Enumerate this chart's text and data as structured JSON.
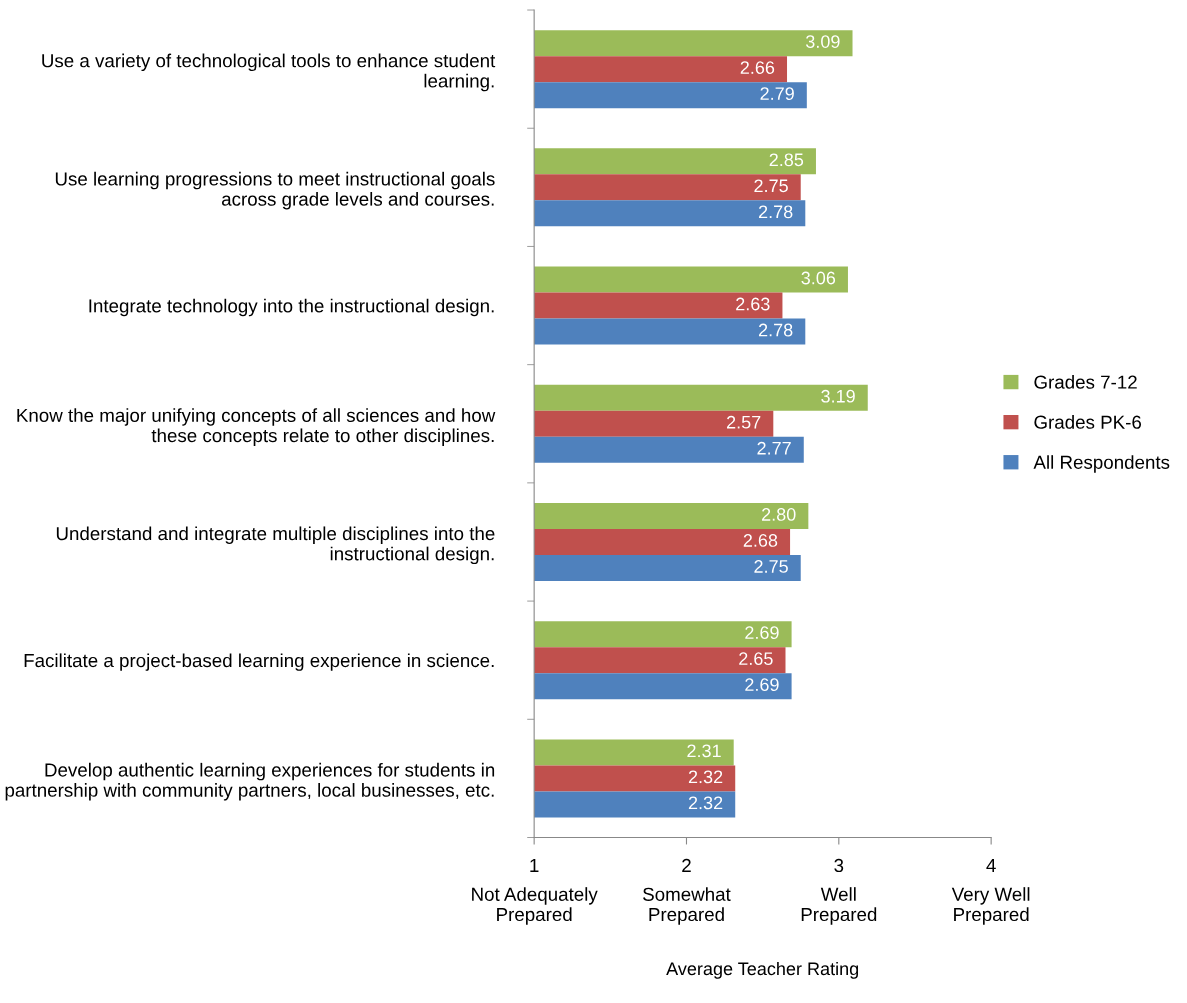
{
  "chart_data": {
    "type": "bar",
    "orientation": "horizontal",
    "xlabel": "Average Teacher Rating",
    "categories": [
      "Use a variety of technological tools to enhance student learning.",
      "Use learning progressions to meet instructional goals across grade levels and courses.",
      "Integrate technology into the instructional design.",
      "Know the major unifying concepts of all sciences and how these concepts relate to other disciplines.",
      "Understand and integrate multiple disciplines into the instructional design.",
      "Facilitate a project-based learning experience in science.",
      "Develop authentic learning experiences for students in partnership with community partners, local businesses, etc."
    ],
    "series": [
      {
        "name": "Grades 7-12",
        "color": "#9bbb59",
        "values": [
          3.09,
          2.85,
          3.06,
          3.19,
          2.8,
          2.69,
          2.31
        ],
        "value_labels": [
          "3.09",
          "2.85",
          "3.06",
          "3.19",
          "2.80",
          "2.69",
          "2.31"
        ]
      },
      {
        "name": "Grades PK-6",
        "color": "#c0504d",
        "values": [
          2.66,
          2.75,
          2.63,
          2.57,
          2.68,
          2.65,
          2.32
        ],
        "value_labels": [
          "2.66",
          "2.75",
          "2.63",
          "2.57",
          "2.68",
          "2.65",
          "2.32"
        ]
      },
      {
        "name": "All Respondents",
        "color": "#4f81bd",
        "values": [
          2.79,
          2.78,
          2.78,
          2.77,
          2.75,
          2.69,
          2.32
        ],
        "value_labels": [
          "2.79",
          "2.78",
          "2.78",
          "2.77",
          "2.75",
          "2.69",
          "2.32"
        ]
      }
    ],
    "xlim": [
      1,
      4
    ],
    "xticks": [
      1,
      2,
      3,
      4
    ],
    "annotations": [
      "Not Adequately\nPrepared",
      "Somewhat\nPrepared",
      "Well\nPrepared",
      "Very Well\nPrepared"
    ],
    "grid": false,
    "legend": "right"
  }
}
